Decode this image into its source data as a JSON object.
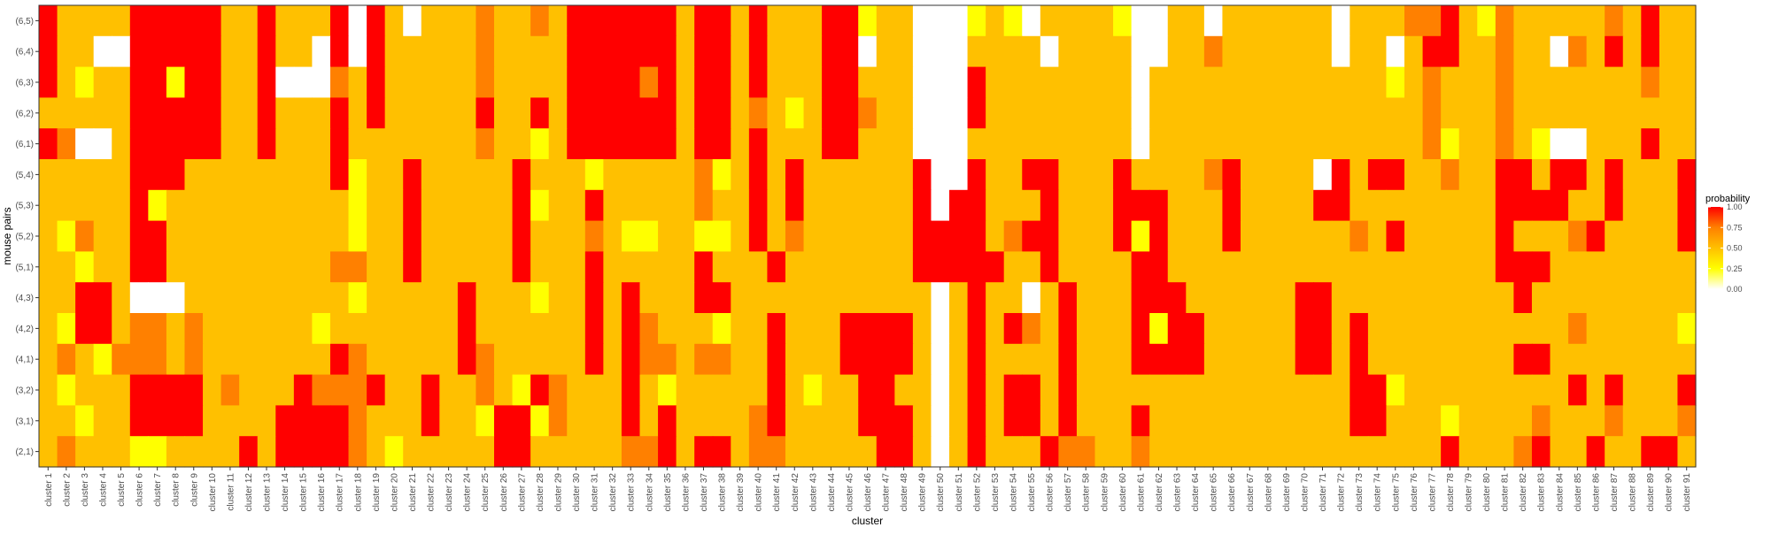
{
  "chart_data": {
    "type": "heatmap",
    "title": "",
    "xlabel": "cluster",
    "ylabel": "mouse pairs",
    "x": [
      "cluster 1",
      "cluster 2",
      "cluster 3",
      "cluster 4",
      "cluster 5",
      "cluster 6",
      "cluster 7",
      "cluster 8",
      "cluster 9",
      "cluster 10",
      "cluster 11",
      "cluster 12",
      "cluster 13",
      "cluster 14",
      "cluster 15",
      "cluster 16",
      "cluster 17",
      "cluster 18",
      "cluster 19",
      "cluster 20",
      "cluster 21",
      "cluster 22",
      "cluster 23",
      "cluster 24",
      "cluster 25",
      "cluster 26",
      "cluster 27",
      "cluster 28",
      "cluster 29",
      "cluster 30",
      "cluster 31",
      "cluster 32",
      "cluster 33",
      "cluster 34",
      "cluster 35",
      "cluster 36",
      "cluster 37",
      "cluster 38",
      "cluster 39",
      "cluster 40",
      "cluster 41",
      "cluster 42",
      "cluster 43",
      "cluster 44",
      "cluster 45",
      "cluster 46",
      "cluster 47",
      "cluster 48",
      "cluster 49",
      "cluster 50",
      "cluster 51",
      "cluster 52",
      "cluster 53",
      "cluster 54",
      "cluster 55",
      "cluster 56",
      "cluster 57",
      "cluster 58",
      "cluster 59",
      "cluster 60",
      "cluster 61",
      "cluster 62",
      "cluster 63",
      "cluster 64",
      "cluster 65",
      "cluster 66",
      "cluster 67",
      "cluster 68",
      "cluster 69",
      "cluster 70",
      "cluster 71",
      "cluster 72",
      "cluster 73",
      "cluster 74",
      "cluster 75",
      "cluster 76",
      "cluster 77",
      "cluster 78",
      "cluster 79",
      "cluster 80",
      "cluster 81",
      "cluster 82",
      "cluster 83",
      "cluster 84",
      "cluster 85",
      "cluster 86",
      "cluster 87",
      "cluster 88",
      "cluster 89",
      "cluster 90",
      "cluster 91"
    ],
    "y": [
      "(6,5)",
      "(6,4)",
      "(6,3)",
      "(6,2)",
      "(6,1)",
      "(5,4)",
      "(5,3)",
      "(5,2)",
      "(5,1)",
      "(4,3)",
      "(4,2)",
      "(4,1)",
      "(3,2)",
      "(3,1)",
      "(2,1)"
    ],
    "values": [
      [
        1,
        0.5,
        0.5,
        0.5,
        0.5,
        1,
        1,
        1,
        1,
        1,
        0.5,
        0.5,
        1,
        0.5,
        0.5,
        0.5,
        1,
        0,
        1,
        0.5,
        0,
        0.5,
        0.5,
        0.5,
        0.75,
        0.5,
        0.5,
        0.75,
        0.5,
        1,
        1,
        1,
        1,
        1,
        1,
        0.5,
        1,
        1,
        0.5,
        1,
        0.5,
        0.5,
        0.5,
        1,
        1,
        0.25,
        0.5,
        0.5,
        0,
        0,
        0,
        0.25,
        0.5,
        0.25,
        0,
        0.5,
        0.5,
        0.5,
        0.5,
        0.25,
        0,
        0,
        0.5,
        0.5,
        0,
        0.5,
        0.5,
        0.5,
        0.5,
        0.5,
        0.5,
        0,
        0.5,
        0.5,
        0.5,
        0.75,
        0.75,
        1,
        0.5,
        0.25,
        0.75,
        0.5,
        0.5,
        0.5,
        0.5,
        0.5,
        0.75,
        0.5,
        1,
        0.5,
        0.5
      ],
      [
        1,
        0.5,
        0.5,
        0,
        0,
        1,
        1,
        1,
        1,
        1,
        0.5,
        0.5,
        1,
        0.5,
        0.5,
        0,
        1,
        0,
        1,
        0.5,
        0.5,
        0.5,
        0.5,
        0.5,
        0.75,
        0.5,
        0.5,
        0.5,
        0.5,
        1,
        1,
        1,
        1,
        1,
        1,
        0.5,
        1,
        1,
        0.5,
        1,
        0.5,
        0.5,
        0.5,
        1,
        1,
        0,
        0.5,
        0.5,
        0,
        0,
        0,
        0.5,
        0.5,
        0.5,
        0.5,
        0,
        0.5,
        0.5,
        0.5,
        0.5,
        0,
        0,
        0.5,
        0.5,
        0.75,
        0.5,
        0.5,
        0.5,
        0.5,
        0.5,
        0.5,
        0,
        0.5,
        0.5,
        0,
        0.5,
        1,
        1,
        0.5,
        0.5,
        0.75,
        0.5,
        0.5,
        0,
        0.75,
        0.5,
        1,
        0.5,
        1,
        0.5,
        0.5
      ],
      [
        1,
        0.5,
        0.25,
        0.5,
        0.5,
        1,
        1,
        0.25,
        1,
        1,
        0.5,
        0.5,
        1,
        0,
        0,
        0,
        0.75,
        0.5,
        1,
        0.5,
        0.5,
        0.5,
        0.5,
        0.5,
        0.75,
        0.5,
        0.5,
        0.5,
        0.5,
        1,
        1,
        1,
        1,
        0.75,
        1,
        0.5,
        1,
        1,
        0.5,
        1,
        0.5,
        0.5,
        0.5,
        1,
        1,
        0.5,
        0.5,
        0.5,
        0,
        0,
        0,
        1,
        0.5,
        0.5,
        0.5,
        0.5,
        0.5,
        0.5,
        0.5,
        0.5,
        0,
        0.5,
        0.5,
        0.5,
        0.5,
        0.5,
        0.5,
        0.5,
        0.5,
        0.5,
        0.5,
        0.5,
        0.5,
        0.5,
        0.25,
        0.5,
        0.75,
        0.5,
        0.5,
        0.5,
        0.75,
        0.5,
        0.5,
        0.5,
        0.5,
        0.5,
        0.5,
        0.5,
        0.75,
        0.5,
        0.5
      ],
      [
        0.5,
        0.5,
        0.5,
        0.5,
        0.5,
        1,
        1,
        1,
        1,
        1,
        0.5,
        0.5,
        1,
        0.5,
        0.5,
        0.5,
        1,
        0.5,
        1,
        0.5,
        0.5,
        0.5,
        0.5,
        0.5,
        1,
        0.5,
        0.5,
        1,
        0.5,
        1,
        1,
        1,
        1,
        1,
        1,
        0.5,
        1,
        1,
        0.5,
        0.75,
        0.5,
        0.25,
        0.5,
        1,
        1,
        0.75,
        0.5,
        0.5,
        0,
        0,
        0,
        1,
        0.5,
        0.5,
        0.5,
        0.5,
        0.5,
        0.5,
        0.5,
        0.5,
        0,
        0.5,
        0.5,
        0.5,
        0.5,
        0.5,
        0.5,
        0.5,
        0.5,
        0.5,
        0.5,
        0.5,
        0.5,
        0.5,
        0.5,
        0.5,
        0.75,
        0.5,
        0.5,
        0.5,
        0.75,
        0.5,
        0.5,
        0.5,
        0.5,
        0.5,
        0.5,
        0.5,
        0.5,
        0.5,
        0.5
      ],
      [
        1,
        0.75,
        0,
        0,
        0.5,
        1,
        1,
        1,
        1,
        1,
        0.5,
        0.5,
        1,
        0.5,
        0.5,
        0.5,
        1,
        0.5,
        0.5,
        0.5,
        0.5,
        0.5,
        0.5,
        0.5,
        0.75,
        0.5,
        0.5,
        0.25,
        0.5,
        1,
        1,
        1,
        1,
        1,
        1,
        0.5,
        1,
        1,
        0.5,
        1,
        0.5,
        0.5,
        0.5,
        1,
        1,
        0.5,
        0.5,
        0.5,
        0,
        0,
        0,
        0.5,
        0.5,
        0.5,
        0.5,
        0.5,
        0.5,
        0.5,
        0.5,
        0.5,
        0,
        0.5,
        0.5,
        0.5,
        0.5,
        0.5,
        0.5,
        0.5,
        0.5,
        0.5,
        0.5,
        0.5,
        0.5,
        0.5,
        0.5,
        0.5,
        0.75,
        0.25,
        0.5,
        0.5,
        0.75,
        0.5,
        0.25,
        0,
        0,
        0.5,
        0.5,
        0.5,
        1,
        0.5,
        0.5
      ],
      [
        0.5,
        0.5,
        0.5,
        0.5,
        0.5,
        1,
        1,
        1,
        0.5,
        0.5,
        0.5,
        0.5,
        0.5,
        0.5,
        0.5,
        0.5,
        1,
        0.25,
        0.5,
        0.5,
        1,
        0.5,
        0.5,
        0.5,
        0.5,
        0.5,
        1,
        0.5,
        0.5,
        0.5,
        0.25,
        0.5,
        0.5,
        0.5,
        0.5,
        0.5,
        0.75,
        0.25,
        0.5,
        1,
        0.5,
        1,
        0.5,
        0.5,
        0.5,
        0.5,
        0.5,
        0.5,
        1,
        0,
        0,
        1,
        0.5,
        0.5,
        1,
        1,
        0.5,
        0.5,
        0.5,
        1,
        0.5,
        0.5,
        0.5,
        0.5,
        0.75,
        1,
        0.5,
        0.5,
        0.5,
        0.5,
        0,
        1,
        0.5,
        1,
        1,
        0.5,
        0.5,
        0.75,
        0.5,
        0.5,
        1,
        1,
        0.5,
        1,
        1,
        0.5,
        1,
        0.5,
        0.5,
        0.5,
        1
      ],
      [
        0.5,
        0.5,
        0.5,
        0.5,
        0.5,
        1,
        0.25,
        0.5,
        0.5,
        0.5,
        0.5,
        0.5,
        0.5,
        0.5,
        0.5,
        0.5,
        0.5,
        0.25,
        0.5,
        0.5,
        1,
        0.5,
        0.5,
        0.5,
        0.5,
        0.5,
        1,
        0.25,
        0.5,
        0.5,
        1,
        0.5,
        0.5,
        0.5,
        0.5,
        0.5,
        0.75,
        0.5,
        0.5,
        1,
        0.5,
        1,
        0.5,
        0.5,
        0.5,
        0.5,
        0.5,
        0.5,
        1,
        0,
        1,
        1,
        0.5,
        0.5,
        0.5,
        1,
        0.5,
        0.5,
        0.5,
        1,
        1,
        1,
        0.5,
        0.5,
        0.5,
        1,
        0.5,
        0.5,
        0.5,
        0.5,
        1,
        1,
        0.5,
        0.5,
        0.5,
        0.5,
        0.5,
        0.5,
        0.5,
        0.5,
        1,
        1,
        1,
        1,
        0.5,
        0.5,
        1,
        0.5,
        0.5,
        0.5,
        1
      ],
      [
        0.5,
        0.25,
        0.75,
        0.5,
        0.5,
        1,
        1,
        0.5,
        0.5,
        0.5,
        0.5,
        0.5,
        0.5,
        0.5,
        0.5,
        0.5,
        0.5,
        0.25,
        0.5,
        0.5,
        1,
        0.5,
        0.5,
        0.5,
        0.5,
        0.5,
        1,
        0.5,
        0.5,
        0.5,
        0.75,
        0.5,
        0.25,
        0.25,
        0.5,
        0.5,
        0.25,
        0.25,
        0.5,
        1,
        0.5,
        0.75,
        0.5,
        0.5,
        0.5,
        0.5,
        0.5,
        0.5,
        1,
        1,
        1,
        1,
        0.5,
        0.75,
        1,
        1,
        0.5,
        0.5,
        0.5,
        1,
        0.25,
        1,
        0.5,
        0.5,
        0.5,
        1,
        0.5,
        0.5,
        0.5,
        0.5,
        0.5,
        0.5,
        0.75,
        0.5,
        1,
        0.5,
        0.5,
        0.5,
        0.5,
        0.5,
        1,
        0.5,
        0.5,
        0.5,
        0.75,
        1,
        0.5,
        0.5,
        0.5,
        0.5,
        1
      ],
      [
        0.5,
        0.5,
        0.25,
        0.5,
        0.5,
        1,
        1,
        0.5,
        0.5,
        0.5,
        0.5,
        0.5,
        0.5,
        0.5,
        0.5,
        0.5,
        0.75,
        0.75,
        0.5,
        0.5,
        1,
        0.5,
        0.5,
        0.5,
        0.5,
        0.5,
        1,
        0.5,
        0.5,
        0.5,
        1,
        0.5,
        0.5,
        0.5,
        0.5,
        0.5,
        1,
        0.5,
        0.5,
        0.5,
        1,
        0.5,
        0.5,
        0.5,
        0.5,
        0.5,
        0.5,
        0.5,
        1,
        1,
        1,
        1,
        1,
        0.5,
        0.5,
        1,
        0.5,
        0.5,
        0.5,
        0.5,
        1,
        1,
        0.5,
        0.5,
        0.5,
        0.5,
        0.5,
        0.5,
        0.5,
        0.5,
        0.5,
        0.5,
        0.5,
        0.5,
        0.5,
        0.5,
        0.5,
        0.5,
        0.5,
        0.5,
        1,
        1,
        1,
        0.5,
        0.5,
        0.5,
        0.5,
        0.5,
        0.5,
        0.5,
        0.5
      ],
      [
        0.5,
        0.5,
        1,
        1,
        0.5,
        0,
        0,
        0,
        0.5,
        0.5,
        0.5,
        0.5,
        0.5,
        0.5,
        0.5,
        0.5,
        0.5,
        0.25,
        0.5,
        0.5,
        0.5,
        0.5,
        0.5,
        1,
        0.5,
        0.5,
        0.5,
        0.25,
        0.5,
        0.5,
        1,
        0.5,
        1,
        0.5,
        0.5,
        0.5,
        1,
        1,
        0.5,
        0.5,
        0.5,
        0.5,
        0.5,
        0.5,
        0.5,
        0.5,
        0.5,
        0.5,
        0.5,
        0,
        0.5,
        1,
        0.5,
        0.5,
        0,
        0.5,
        1,
        0.5,
        0.5,
        0.5,
        1,
        1,
        1,
        0.5,
        0.5,
        0.5,
        0.5,
        0.5,
        0.5,
        1,
        1,
        0.5,
        0.5,
        0.5,
        0.5,
        0.5,
        0.5,
        0.5,
        0.5,
        0.5,
        0.5,
        1,
        0.5,
        0.5,
        0.5,
        0.5,
        0.5,
        0.5,
        0.5,
        0.5,
        0.5
      ],
      [
        0.5,
        0.25,
        1,
        1,
        0.5,
        0.75,
        0.75,
        0.5,
        0.75,
        0.5,
        0.5,
        0.5,
        0.5,
        0.5,
        0.5,
        0.25,
        0.5,
        0.5,
        0.5,
        0.5,
        0.5,
        0.5,
        0.5,
        1,
        0.5,
        0.5,
        0.5,
        0.5,
        0.5,
        0.5,
        1,
        0.5,
        1,
        0.75,
        0.5,
        0.5,
        0.5,
        0.25,
        0.5,
        0.5,
        1,
        0.5,
        0.5,
        0.5,
        1,
        1,
        1,
        1,
        0.5,
        0,
        0.5,
        1,
        0.5,
        1,
        0.75,
        0.5,
        1,
        0.5,
        0.5,
        0.5,
        1,
        0.25,
        1,
        1,
        0.5,
        0.5,
        0.5,
        0.5,
        0.5,
        1,
        1,
        0.5,
        1,
        0.5,
        0.5,
        0.5,
        0.5,
        0.5,
        0.5,
        0.5,
        0.5,
        0.5,
        0.5,
        0.5,
        0.75,
        0.5,
        0.5,
        0.5,
        0.5,
        0.5,
        0.25
      ],
      [
        0.5,
        0.75,
        0.5,
        0.25,
        0.75,
        0.75,
        0.75,
        0.5,
        0.75,
        0.5,
        0.5,
        0.5,
        0.5,
        0.5,
        0.5,
        0.5,
        1,
        0.75,
        0.5,
        0.5,
        0.5,
        0.5,
        0.5,
        1,
        0.75,
        0.5,
        0.5,
        0.5,
        0.5,
        0.5,
        1,
        0.5,
        1,
        0.75,
        0.75,
        0.5,
        0.75,
        0.75,
        0.5,
        0.5,
        1,
        0.5,
        0.5,
        0.5,
        1,
        1,
        1,
        1,
        0.5,
        0,
        0.5,
        1,
        0.5,
        0.5,
        0.5,
        0.5,
        1,
        0.5,
        0.5,
        0.5,
        1,
        1,
        1,
        1,
        0.5,
        0.5,
        0.5,
        0.5,
        0.5,
        1,
        1,
        0.5,
        1,
        0.5,
        0.5,
        0.5,
        0.5,
        0.5,
        0.5,
        0.5,
        0.5,
        1,
        1,
        0.5,
        0.5,
        0.5,
        0.5,
        0.5,
        0.5,
        0.5,
        0.5
      ],
      [
        0.5,
        0.25,
        0.5,
        0.5,
        0.5,
        1,
        1,
        1,
        1,
        0.5,
        0.75,
        0.5,
        0.5,
        0.5,
        1,
        0.75,
        0.75,
        0.75,
        1,
        0.5,
        0.5,
        1,
        0.5,
        0.5,
        0.75,
        0.5,
        0.25,
        1,
        0.75,
        0.5,
        0.5,
        0.5,
        1,
        0.5,
        0.25,
        0.5,
        0.5,
        0.5,
        0.5,
        0.5,
        1,
        0.5,
        0.25,
        0.5,
        0.5,
        1,
        1,
        0.5,
        0.5,
        0,
        0.5,
        1,
        0.5,
        1,
        1,
        0.5,
        1,
        0.5,
        0.5,
        0.5,
        0.5,
        0.5,
        0.5,
        0.5,
        0.5,
        0.5,
        0.5,
        0.5,
        0.5,
        0.5,
        0.5,
        0.5,
        1,
        1,
        0.25,
        0.5,
        0.5,
        0.5,
        0.5,
        0.5,
        0.5,
        0.5,
        0.5,
        0.5,
        1,
        0.5,
        1,
        0.5,
        0.5,
        0.5,
        1
      ],
      [
        0.5,
        0.5,
        0.25,
        0.5,
        0.5,
        1,
        1,
        1,
        1,
        0.5,
        0.5,
        0.5,
        0.5,
        1,
        1,
        1,
        1,
        0.75,
        0.5,
        0.5,
        0.5,
        1,
        0.5,
        0.5,
        0.25,
        1,
        1,
        0.25,
        0.75,
        0.5,
        0.5,
        0.5,
        1,
        0.5,
        1,
        0.5,
        0.5,
        0.5,
        0.5,
        0.75,
        1,
        0.5,
        0.5,
        0.5,
        0.5,
        1,
        1,
        1,
        0.5,
        0,
        0.5,
        1,
        0.5,
        1,
        1,
        0.5,
        1,
        0.5,
        0.5,
        0.5,
        1,
        0.5,
        0.5,
        0.5,
        0.5,
        0.5,
        0.5,
        0.5,
        0.5,
        0.5,
        0.5,
        0.5,
        1,
        1,
        0.5,
        0.5,
        0.5,
        0.25,
        0.5,
        0.5,
        0.5,
        0.5,
        0.75,
        0.5,
        0.5,
        0.5,
        0.75,
        0.5,
        0.5,
        0.5,
        0.75
      ],
      [
        0.5,
        0.75,
        0.5,
        0.5,
        0.5,
        0.25,
        0.25,
        0.5,
        0.5,
        0.5,
        0.5,
        1,
        0.5,
        1,
        1,
        1,
        1,
        0.75,
        0.5,
        0.25,
        0.5,
        0.5,
        0.5,
        0.5,
        0.5,
        1,
        1,
        0.5,
        0.5,
        0.5,
        0.5,
        0.5,
        0.75,
        0.75,
        1,
        0.5,
        1,
        1,
        0.5,
        0.75,
        0.75,
        0.5,
        0.5,
        0.5,
        0.5,
        0.5,
        1,
        1,
        0.5,
        0,
        0.5,
        1,
        0.5,
        0.5,
        0.5,
        1,
        0.75,
        0.75,
        0.5,
        0.5,
        0.75,
        0.5,
        0.5,
        0.5,
        0.5,
        0.5,
        0.5,
        0.5,
        0.5,
        0.5,
        0.5,
        0.5,
        0.5,
        0.5,
        0.5,
        0.5,
        0.5,
        1,
        0.5,
        0.5,
        0.5,
        0.75,
        1,
        0.5,
        0.5,
        1,
        0.5,
        0.5,
        1,
        1,
        0.5
      ]
    ],
    "colorbar": {
      "title": "probability",
      "ticks": [
        "1.00",
        "0.75",
        "0.50",
        "0.25",
        "0.00"
      ],
      "min": 0,
      "max": 1
    },
    "colorscale": [
      "#ffffff",
      "#ffff00",
      "#ffc000",
      "#ff8000",
      "#ff0000"
    ],
    "grid": false,
    "legend_position": "right"
  }
}
